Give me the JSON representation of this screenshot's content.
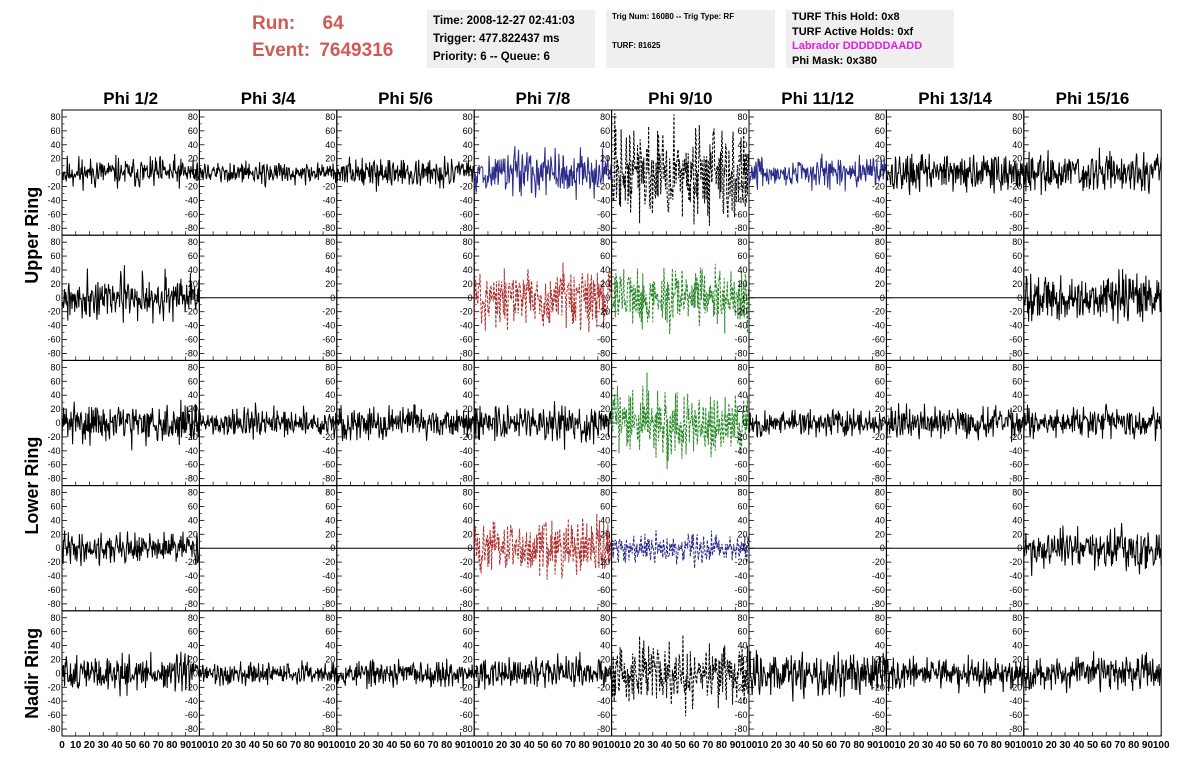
{
  "header": {
    "run_label": "Run:",
    "run_value": "64",
    "event_label": "Event:",
    "event_value": "7649316",
    "time": "Time: 2008-12-27 02:41:03",
    "trigger": "Trigger: 477.822437 ms",
    "priority": "Priority: 6 -- Queue: 6",
    "trig_num": "Trig Num: 16080 -- Trig Type: RF",
    "turf": "TURF: 81625",
    "turf_this_hold": "TURF This Hold: 0x8",
    "turf_active_holds": "TURF Active Holds: 0xf",
    "labrador": "Labrador DDDDDDAADD",
    "phi_mask": "Phi Mask: 0x380"
  },
  "colors": {
    "run_text": "#d05a55",
    "labrador": "#e020e0",
    "black": "#000000",
    "blue": "#2b2b8a",
    "red": "#b03030",
    "green": "#2a8a2a"
  },
  "chart_data": {
    "type": "line",
    "title": "",
    "columns": [
      "Phi 1/2",
      "Phi 3/4",
      "Phi 5/6",
      "Phi 7/8",
      "Phi 9/10",
      "Phi 11/12",
      "Phi 13/14",
      "Phi 15/16"
    ],
    "ring_labels": [
      "Upper Ring",
      "Lower Ring",
      "Nadir Ring"
    ],
    "row_ring": [
      0,
      0,
      1,
      1,
      2
    ],
    "xlim": [
      0,
      100
    ],
    "ylim": [
      -90,
      90
    ],
    "x_ticks": [
      0,
      10,
      20,
      30,
      40,
      50,
      60,
      70,
      80,
      90,
      100
    ],
    "y_ticks": [
      -80,
      -60,
      -40,
      -20,
      0,
      20,
      40,
      60,
      80
    ],
    "grid": false,
    "panels": [
      [
        {
          "color": "black",
          "dashed": false,
          "amp": 14,
          "seed": 11
        },
        {
          "color": "black",
          "dashed": false,
          "amp": 10,
          "seed": 12
        },
        {
          "color": "black",
          "dashed": false,
          "amp": 13,
          "seed": 13
        },
        {
          "color": "blue",
          "dashed": false,
          "amp": 20,
          "seed": 14
        },
        {
          "color": "black",
          "dashed": true,
          "amp": 42,
          "seed": 15
        },
        {
          "color": "blue",
          "dashed": false,
          "amp": 14,
          "seed": 16
        },
        {
          "color": "black",
          "dashed": false,
          "amp": 17,
          "seed": 17
        },
        {
          "color": "black",
          "dashed": false,
          "amp": 18,
          "seed": 18
        }
      ],
      [
        {
          "color": "black",
          "dashed": false,
          "amp": 20,
          "seed": 21
        },
        {
          "color": "black",
          "dashed": false,
          "amp": 0,
          "seed": 22
        },
        {
          "color": "black",
          "dashed": false,
          "amp": 0,
          "seed": 23
        },
        {
          "color": "red",
          "dashed": true,
          "amp": 28,
          "seed": 24
        },
        {
          "color": "green",
          "dashed": true,
          "amp": 28,
          "seed": 25
        },
        {
          "color": "black",
          "dashed": false,
          "amp": 0,
          "seed": 26
        },
        {
          "color": "black",
          "dashed": false,
          "amp": 0,
          "seed": 27
        },
        {
          "color": "black",
          "dashed": false,
          "amp": 22,
          "seed": 28
        }
      ],
      [
        {
          "color": "black",
          "dashed": false,
          "amp": 18,
          "seed": 31
        },
        {
          "color": "black",
          "dashed": false,
          "amp": 13,
          "seed": 32
        },
        {
          "color": "black",
          "dashed": false,
          "amp": 16,
          "seed": 33
        },
        {
          "color": "black",
          "dashed": false,
          "amp": 18,
          "seed": 34
        },
        {
          "color": "green",
          "dashed": true,
          "amp": 34,
          "seed": 35
        },
        {
          "color": "black",
          "dashed": false,
          "amp": 13,
          "seed": 36
        },
        {
          "color": "black",
          "dashed": false,
          "amp": 15,
          "seed": 37
        },
        {
          "color": "black",
          "dashed": false,
          "amp": 14,
          "seed": 38
        }
      ],
      [
        {
          "color": "black",
          "dashed": false,
          "amp": 14,
          "seed": 41
        },
        {
          "color": "black",
          "dashed": false,
          "amp": 0,
          "seed": 42
        },
        {
          "color": "black",
          "dashed": false,
          "amp": 0,
          "seed": 43
        },
        {
          "color": "red",
          "dashed": true,
          "amp": 26,
          "seed": 44
        },
        {
          "color": "blue",
          "dashed": true,
          "amp": 14,
          "seed": 45
        },
        {
          "color": "black",
          "dashed": false,
          "amp": 0,
          "seed": 46
        },
        {
          "color": "black",
          "dashed": false,
          "amp": 0,
          "seed": 47
        },
        {
          "color": "black",
          "dashed": false,
          "amp": 20,
          "seed": 48
        }
      ],
      [
        {
          "color": "black",
          "dashed": false,
          "amp": 16,
          "seed": 51
        },
        {
          "color": "black",
          "dashed": false,
          "amp": 10,
          "seed": 52
        },
        {
          "color": "black",
          "dashed": false,
          "amp": 12,
          "seed": 53
        },
        {
          "color": "black",
          "dashed": false,
          "amp": 14,
          "seed": 54
        },
        {
          "color": "black",
          "dashed": true,
          "amp": 28,
          "seed": 55
        },
        {
          "color": "black",
          "dashed": false,
          "amp": 20,
          "seed": 56
        },
        {
          "color": "black",
          "dashed": false,
          "amp": 15,
          "seed": 57
        },
        {
          "color": "black",
          "dashed": false,
          "amp": 16,
          "seed": 58
        }
      ]
    ]
  }
}
